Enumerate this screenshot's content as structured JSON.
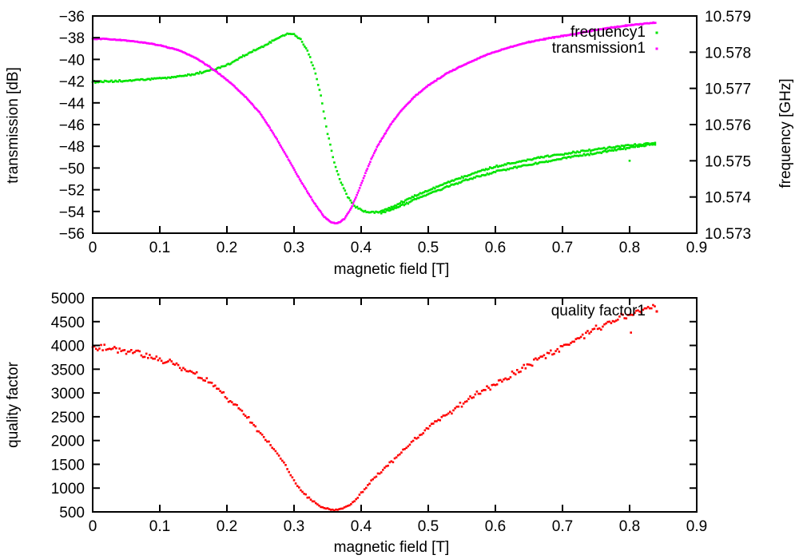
{
  "figure_background": "#ffffff",
  "axis_color": "#000000",
  "chart_data": [
    {
      "type": "scatter",
      "panel": "top",
      "xlabel": "magnetic field [T]",
      "ylabel_left": "transmission [dB]",
      "ylabel_right": "frequency [GHz]",
      "xlim": [
        0,
        0.9
      ],
      "ylim_left": [
        -56,
        -36
      ],
      "ylim_right": [
        10.573,
        10.579
      ],
      "grid": false,
      "legend_position": "top-right-inside",
      "xticks": {
        "values": [
          0,
          0.1,
          0.2,
          0.3,
          0.4,
          0.5,
          0.6,
          0.7,
          0.8,
          0.9
        ],
        "labels": [
          "0",
          "0.1",
          "0.2",
          "0.3",
          "0.4",
          "0.5",
          "0.6",
          "0.7",
          "0.8",
          "0.9"
        ]
      },
      "yticks_left": {
        "values": [
          -36,
          -38,
          -40,
          -42,
          -44,
          -46,
          -48,
          -50,
          -52,
          -54,
          -56
        ],
        "labels": [
          "−36",
          "−38",
          "−40",
          "−42",
          "−44",
          "−46",
          "−48",
          "−50",
          "−52",
          "−54",
          "−56"
        ]
      },
      "yticks_right": {
        "values": [
          10.573,
          10.574,
          10.575,
          10.576,
          10.577,
          10.578,
          10.579
        ],
        "labels": [
          "10.573",
          "10.574",
          "10.575",
          "10.576",
          "10.577",
          "10.578",
          "10.579"
        ]
      },
      "legend": [
        {
          "label": "frequency1",
          "color": "#00e400"
        },
        {
          "label": "transmission1",
          "color": "#ff00ff"
        }
      ],
      "series": [
        {
          "name": "frequency1",
          "axis": "right",
          "color": "#00e400",
          "marker": "dot",
          "step": 0.002,
          "noise": 3e-05,
          "points": [
            [
              0,
              10.57718
            ],
            [
              0.03,
              10.57719
            ],
            [
              0.06,
              10.57722
            ],
            [
              0.09,
              10.57726
            ],
            [
              0.12,
              10.57731
            ],
            [
              0.15,
              10.57739
            ],
            [
              0.18,
              10.57752
            ],
            [
              0.2,
              10.57764
            ],
            [
              0.22,
              10.57785
            ],
            [
              0.24,
              10.57803
            ],
            [
              0.26,
              10.57822
            ],
            [
              0.275,
              10.57838
            ],
            [
              0.29,
              10.57851
            ],
            [
              0.3,
              10.57849
            ],
            [
              0.31,
              10.57835
            ],
            [
              0.32,
              10.57804
            ],
            [
              0.33,
              10.57754
            ],
            [
              0.34,
              10.5768
            ],
            [
              0.35,
              10.57576
            ],
            [
              0.36,
              10.57495
            ],
            [
              0.37,
              10.5744
            ],
            [
              0.38,
              10.574
            ],
            [
              0.39,
              10.57376
            ],
            [
              0.4,
              10.57363
            ],
            [
              0.41,
              10.57358
            ],
            [
              0.42,
              10.57357
            ],
            [
              0.43,
              10.5736
            ],
            [
              0.445,
              10.57372
            ],
            [
              0.46,
              10.57385
            ],
            [
              0.48,
              10.57403
            ],
            [
              0.5,
              10.57418
            ],
            [
              0.52,
              10.57433
            ],
            [
              0.55,
              10.57455
            ],
            [
              0.58,
              10.57474
            ],
            [
              0.61,
              10.57488
            ],
            [
              0.64,
              10.575
            ],
            [
              0.67,
              10.5751
            ],
            [
              0.7,
              10.57519
            ],
            [
              0.73,
              10.57527
            ],
            [
              0.76,
              10.57534
            ],
            [
              0.79,
              10.57541
            ],
            [
              0.81,
              10.57544
            ],
            [
              0.84,
              10.57548
            ]
          ],
          "points2": [
            [
              0.43,
              10.57355
            ],
            [
              0.46,
              10.57376
            ],
            [
              0.5,
              10.57408
            ],
            [
              0.55,
              10.57443
            ],
            [
              0.6,
              10.5747
            ],
            [
              0.65,
              10.57489
            ],
            [
              0.7,
              10.57507
            ],
            [
              0.75,
              10.57521
            ],
            [
              0.79,
              10.57533
            ],
            [
              0.82,
              10.57542
            ],
            [
              0.84,
              10.57547
            ]
          ],
          "outliers": [
            [
              0.8,
              10.575
            ]
          ]
        },
        {
          "name": "transmission1",
          "axis": "left",
          "color": "#ff00ff",
          "marker": "dot",
          "step": 0.0015,
          "noise": 0.05,
          "points": [
            [
              0,
              -38.1
            ],
            [
              0.02,
              -38.12
            ],
            [
              0.05,
              -38.25
            ],
            [
              0.08,
              -38.48
            ],
            [
              0.1,
              -38.7
            ],
            [
              0.13,
              -39.2
            ],
            [
              0.15,
              -39.75
            ],
            [
              0.17,
              -40.5
            ],
            [
              0.19,
              -41.4
            ],
            [
              0.21,
              -42.4
            ],
            [
              0.23,
              -43.6
            ],
            [
              0.25,
              -45.0
            ],
            [
              0.27,
              -46.9
            ],
            [
              0.29,
              -49.0
            ],
            [
              0.31,
              -51.2
            ],
            [
              0.33,
              -53.2
            ],
            [
              0.345,
              -54.5
            ],
            [
              0.355,
              -55.0
            ],
            [
              0.365,
              -55.1
            ],
            [
              0.375,
              -54.7
            ],
            [
              0.385,
              -53.7
            ],
            [
              0.395,
              -52.3
            ],
            [
              0.405,
              -50.7
            ],
            [
              0.415,
              -49.2
            ],
            [
              0.425,
              -47.9
            ],
            [
              0.435,
              -46.9
            ],
            [
              0.445,
              -45.9
            ],
            [
              0.46,
              -44.7
            ],
            [
              0.48,
              -43.4
            ],
            [
              0.5,
              -42.4
            ],
            [
              0.53,
              -41.2
            ],
            [
              0.56,
              -40.3
            ],
            [
              0.59,
              -39.5
            ],
            [
              0.62,
              -38.9
            ],
            [
              0.65,
              -38.4
            ],
            [
              0.68,
              -38.05
            ],
            [
              0.71,
              -37.75
            ],
            [
              0.74,
              -37.4
            ],
            [
              0.77,
              -37.1
            ],
            [
              0.8,
              -36.85
            ],
            [
              0.82,
              -36.72
            ],
            [
              0.84,
              -36.6
            ]
          ]
        }
      ]
    },
    {
      "type": "scatter",
      "panel": "bottom",
      "xlabel": "magnetic field [T]",
      "ylabel": "quality factor",
      "xlim": [
        0,
        0.9
      ],
      "ylim": [
        500,
        5000
      ],
      "grid": false,
      "legend_position": "top-right-inside",
      "xticks": {
        "values": [
          0,
          0.1,
          0.2,
          0.3,
          0.4,
          0.5,
          0.6,
          0.7,
          0.8,
          0.9
        ],
        "labels": [
          "0",
          "0.1",
          "0.2",
          "0.3",
          "0.4",
          "0.5",
          "0.6",
          "0.7",
          "0.8",
          "0.9"
        ]
      },
      "yticks": {
        "values": [
          500,
          1000,
          1500,
          2000,
          2500,
          3000,
          3500,
          4000,
          4500,
          5000
        ],
        "labels": [
          "500",
          "1000",
          "1500",
          "2000",
          "2500",
          "3000",
          "3500",
          "4000",
          "4500",
          "5000"
        ]
      },
      "legend": [
        {
          "label": "quality factor1",
          "color": "#ff0000"
        }
      ],
      "series": [
        {
          "name": "quality factor1",
          "axis": "left",
          "color": "#ff0000",
          "marker": "dot",
          "step": 0.0025,
          "noise": 8,
          "noise_rel": 0.02,
          "points": [
            [
              0,
              3980
            ],
            [
              0.02,
              3950
            ],
            [
              0.05,
              3890
            ],
            [
              0.08,
              3790
            ],
            [
              0.1,
              3700
            ],
            [
              0.12,
              3600
            ],
            [
              0.14,
              3490
            ],
            [
              0.16,
              3350
            ],
            [
              0.18,
              3150
            ],
            [
              0.2,
              2900
            ],
            [
              0.22,
              2640
            ],
            [
              0.24,
              2330
            ],
            [
              0.26,
              1990
            ],
            [
              0.28,
              1640
            ],
            [
              0.3,
              1150
            ],
            [
              0.315,
              880
            ],
            [
              0.33,
              700
            ],
            [
              0.345,
              575
            ],
            [
              0.36,
              535
            ],
            [
              0.375,
              585
            ],
            [
              0.39,
              720
            ],
            [
              0.405,
              980
            ],
            [
              0.42,
              1230
            ],
            [
              0.44,
              1480
            ],
            [
              0.46,
              1750
            ],
            [
              0.48,
              2020
            ],
            [
              0.5,
              2270
            ],
            [
              0.53,
              2580
            ],
            [
              0.56,
              2870
            ],
            [
              0.59,
              3100
            ],
            [
              0.62,
              3350
            ],
            [
              0.65,
              3600
            ],
            [
              0.68,
              3810
            ],
            [
              0.71,
              4040
            ],
            [
              0.74,
              4280
            ],
            [
              0.77,
              4480
            ],
            [
              0.8,
              4640
            ],
            [
              0.82,
              4750
            ],
            [
              0.84,
              4830
            ]
          ],
          "outliers": [
            [
              0.802,
              4270
            ]
          ]
        }
      ]
    }
  ]
}
